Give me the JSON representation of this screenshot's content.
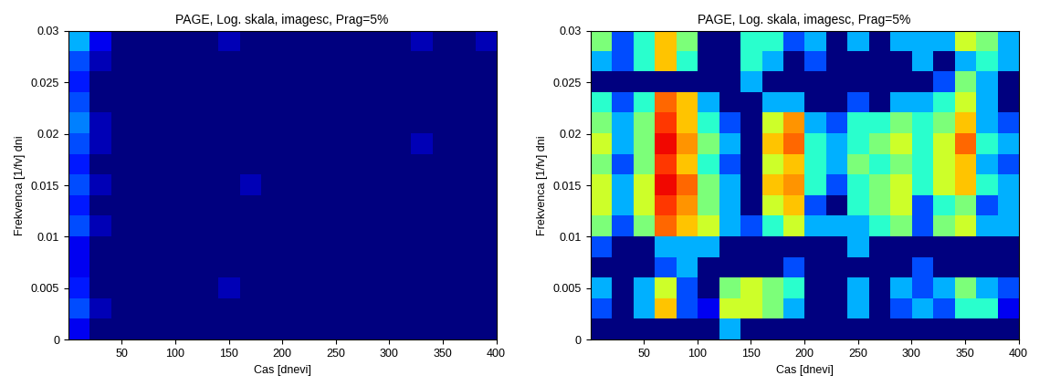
{
  "chart_data": [
    {
      "type": "heatmap",
      "title": "PAGE, Log. skala, imagesc, Prag=5%",
      "x_label": "Cas [dnevi]",
      "y_label": "Frekvenca [1/fv] dni",
      "xlim": [
        0,
        400
      ],
      "ylim": [
        0,
        0.03
      ],
      "xticks": [
        50,
        100,
        150,
        200,
        250,
        300,
        350,
        400
      ],
      "yticks": [
        0,
        0.005,
        0.01,
        0.015,
        0.02,
        0.025,
        0.03
      ],
      "clim": [
        0,
        1
      ],
      "cells": [
        [
          0.1,
          0,
          0,
          0,
          0,
          0,
          0,
          0,
          0,
          0,
          0,
          0,
          0,
          0,
          0,
          0,
          0,
          0,
          0,
          0
        ],
        [
          0.2,
          0.05,
          0,
          0,
          0,
          0,
          0,
          0,
          0,
          0,
          0,
          0,
          0,
          0,
          0,
          0,
          0,
          0,
          0,
          0
        ],
        [
          0.15,
          0,
          0,
          0,
          0,
          0,
          0,
          0.05,
          0,
          0,
          0,
          0,
          0,
          0,
          0,
          0,
          0,
          0,
          0,
          0
        ],
        [
          0.1,
          0,
          0,
          0,
          0,
          0,
          0,
          0,
          0,
          0,
          0,
          0,
          0,
          0,
          0,
          0,
          0,
          0,
          0,
          0
        ],
        [
          0.1,
          0,
          0,
          0,
          0,
          0,
          0,
          0,
          0,
          0,
          0,
          0,
          0,
          0,
          0,
          0,
          0,
          0,
          0,
          0
        ],
        [
          0.2,
          0.05,
          0,
          0,
          0,
          0,
          0,
          0,
          0,
          0,
          0,
          0,
          0,
          0,
          0,
          0,
          0,
          0,
          0,
          0
        ],
        [
          0.15,
          0,
          0,
          0,
          0,
          0,
          0,
          0,
          0,
          0,
          0,
          0,
          0,
          0,
          0,
          0,
          0,
          0,
          0,
          0
        ],
        [
          0.2,
          0.05,
          0,
          0,
          0,
          0,
          0,
          0,
          0.05,
          0,
          0,
          0,
          0,
          0,
          0,
          0,
          0,
          0,
          0,
          0
        ],
        [
          0.15,
          0,
          0,
          0,
          0,
          0,
          0,
          0,
          0,
          0,
          0,
          0,
          0,
          0,
          0,
          0,
          0,
          0,
          0,
          0
        ],
        [
          0.2,
          0.05,
          0,
          0,
          0,
          0,
          0,
          0,
          0,
          0,
          0,
          0,
          0,
          0,
          0,
          0,
          0.05,
          0,
          0,
          0
        ],
        [
          0.25,
          0.05,
          0,
          0,
          0,
          0,
          0,
          0,
          0,
          0,
          0,
          0,
          0,
          0,
          0,
          0,
          0,
          0,
          0,
          0
        ],
        [
          0.2,
          0,
          0,
          0,
          0,
          0,
          0,
          0,
          0,
          0,
          0,
          0,
          0,
          0,
          0,
          0,
          0,
          0,
          0,
          0
        ],
        [
          0.15,
          0,
          0,
          0,
          0,
          0,
          0,
          0,
          0,
          0,
          0,
          0,
          0,
          0,
          0,
          0,
          0,
          0,
          0,
          0
        ],
        [
          0.2,
          0.05,
          0,
          0,
          0,
          0,
          0,
          0,
          0,
          0,
          0,
          0,
          0,
          0,
          0,
          0,
          0,
          0,
          0,
          0
        ],
        [
          0.3,
          0.1,
          0,
          0,
          0,
          0,
          0,
          0.05,
          0,
          0,
          0,
          0,
          0,
          0,
          0,
          0,
          0.05,
          0,
          0,
          0.05
        ]
      ]
    },
    {
      "type": "heatmap",
      "title": "PAGE, Log. skala, imagesc, Prag=5%",
      "x_label": "Cas [dnevi]",
      "y_label": "Frekvenca [1/fv] dni",
      "xlim": [
        0,
        400
      ],
      "ylim": [
        0,
        0.03
      ],
      "xticks": [
        50,
        100,
        150,
        200,
        250,
        300,
        350,
        400
      ],
      "yticks": [
        0,
        0.005,
        0.01,
        0.015,
        0.02,
        0.025,
        0.03
      ],
      "clim": [
        0,
        1
      ],
      "cells": [
        [
          0,
          0,
          0,
          0,
          0,
          0,
          0.3,
          0,
          0,
          0,
          0,
          0,
          0,
          0,
          0,
          0,
          0,
          0,
          0,
          0
        ],
        [
          0.2,
          0,
          0.3,
          0.7,
          0.2,
          0.1,
          0.6,
          0.6,
          0.5,
          0.3,
          0,
          0,
          0.3,
          0,
          0.2,
          0.3,
          0.2,
          0.4,
          0.4,
          0.1
        ],
        [
          0.3,
          0,
          0.3,
          0.6,
          0.2,
          0,
          0.5,
          0.6,
          0.5,
          0.4,
          0,
          0,
          0.3,
          0,
          0.3,
          0.2,
          0.3,
          0.5,
          0.3,
          0.2
        ],
        [
          0,
          0,
          0,
          0.2,
          0.3,
          0,
          0,
          0,
          0,
          0.2,
          0,
          0,
          0,
          0,
          0,
          0.2,
          0,
          0,
          0,
          0
        ],
        [
          0.2,
          0,
          0,
          0.3,
          0.3,
          0.3,
          0,
          0,
          0,
          0,
          0,
          0,
          0.3,
          0,
          0,
          0,
          0,
          0,
          0,
          0
        ],
        [
          0.5,
          0.2,
          0.5,
          0.8,
          0.7,
          0.6,
          0.3,
          0.2,
          0.4,
          0.6,
          0.3,
          0.3,
          0.3,
          0.4,
          0.5,
          0.2,
          0.5,
          0.6,
          0.3,
          0.3
        ],
        [
          0.6,
          0.3,
          0.6,
          0.85,
          0.75,
          0.5,
          0.3,
          0,
          0.6,
          0.7,
          0.2,
          0,
          0.4,
          0.5,
          0.6,
          0.2,
          0.4,
          0.5,
          0.2,
          0.3
        ],
        [
          0.6,
          0.3,
          0.6,
          0.9,
          0.8,
          0.5,
          0.3,
          0,
          0.7,
          0.75,
          0.4,
          0.2,
          0.4,
          0.5,
          0.6,
          0.4,
          0.6,
          0.7,
          0.4,
          0.3
        ],
        [
          0.5,
          0.2,
          0.5,
          0.85,
          0.7,
          0.4,
          0.2,
          0,
          0.6,
          0.7,
          0.4,
          0.3,
          0.5,
          0.4,
          0.5,
          0.4,
          0.6,
          0.7,
          0.3,
          0.2
        ],
        [
          0.6,
          0.3,
          0.5,
          0.9,
          0.75,
          0.5,
          0.3,
          0,
          0.7,
          0.8,
          0.4,
          0.3,
          0.4,
          0.5,
          0.6,
          0.4,
          0.6,
          0.8,
          0.4,
          0.3
        ],
        [
          0.5,
          0.3,
          0.5,
          0.85,
          0.7,
          0.4,
          0.2,
          0,
          0.6,
          0.75,
          0.3,
          0.2,
          0.4,
          0.4,
          0.5,
          0.4,
          0.5,
          0.7,
          0.3,
          0.2
        ],
        [
          0.4,
          0.2,
          0.4,
          0.8,
          0.7,
          0.3,
          0,
          0,
          0.3,
          0.3,
          0,
          0,
          0.2,
          0,
          0.3,
          0.3,
          0.4,
          0.6,
          0.3,
          0
        ],
        [
          0,
          0,
          0,
          0,
          0,
          0,
          0,
          0.3,
          0,
          0,
          0,
          0,
          0,
          0,
          0,
          0,
          0.2,
          0.5,
          0.3,
          0
        ],
        [
          0.3,
          0.2,
          0.4,
          0.7,
          0.4,
          0,
          0,
          0.4,
          0.3,
          0,
          0.2,
          0,
          0,
          0,
          0,
          0.3,
          0,
          0.3,
          0.4,
          0.3
        ],
        [
          0.5,
          0.2,
          0.4,
          0.7,
          0.5,
          0,
          0,
          0.4,
          0.4,
          0.2,
          0.3,
          0,
          0.3,
          0,
          0.3,
          0.3,
          0.3,
          0.6,
          0.5,
          0.3
        ]
      ]
    }
  ]
}
